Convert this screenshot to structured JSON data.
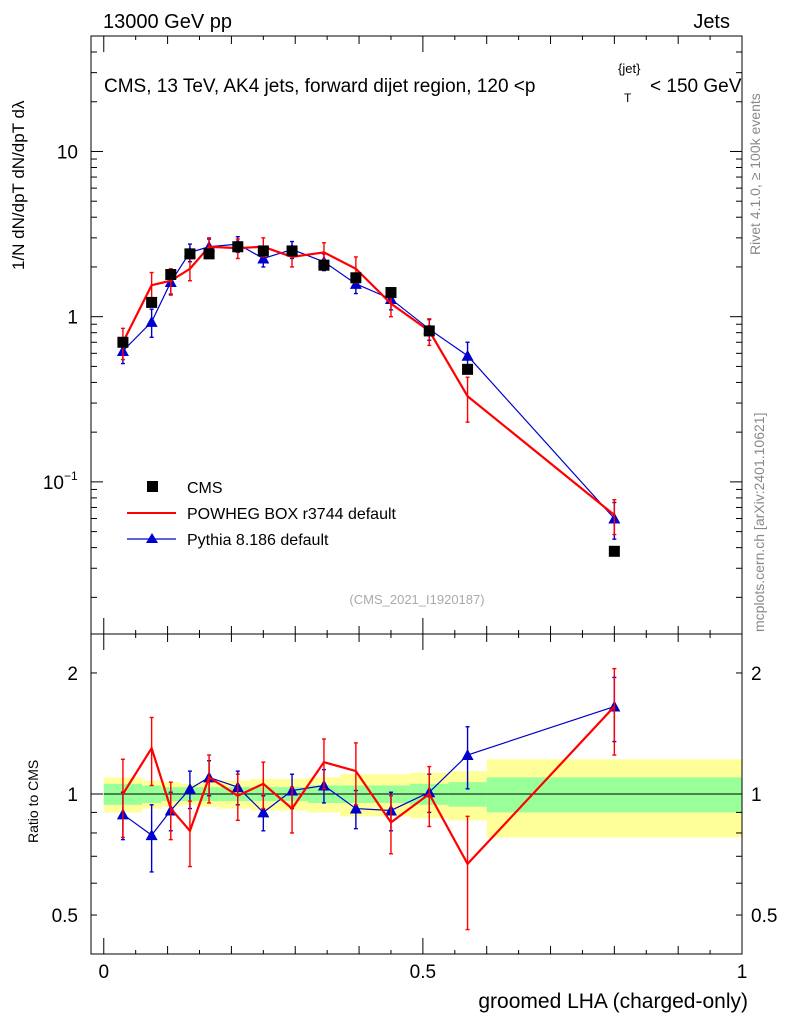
{
  "header": {
    "left": "13000 GeV pp",
    "right": "Jets",
    "title": "CMS, 13 TeV, AK4 jets, forward dijet region, 120 <p",
    "title_sup": "{jet}",
    "title_sub": "T",
    "title_tail": "< 150 GeV"
  },
  "side_labels": {
    "rivet": "Rivet 4.1.0, ≥ 100k events",
    "mcplots": "mcplots.cern.ch [arXiv:2401.10621]"
  },
  "watermark": "(CMS_2021_I1920187)",
  "ylabel_main": "1/N dN/dpT dN/dpT dλ",
  "ylabel_ratio": "Ratio to CMS",
  "xlabel": "groomed LHA (charged-only)",
  "colors": {
    "cms": "#000000",
    "powheg": "#ff0000",
    "pythia": "#0000cc",
    "band_inner": "#99ff99",
    "band_outer": "#ffff99"
  },
  "chart_data": [
    {
      "type": "line",
      "panel": "main",
      "yscale": "log",
      "xlim": [
        -0.02,
        1.0
      ],
      "ylim": [
        0.012,
        50
      ],
      "x_ticks": [],
      "y_ticks": [
        {
          "value": 0.1,
          "label": "10",
          "sup": "−1"
        },
        {
          "value": 1,
          "label": "1"
        },
        {
          "value": 10,
          "label": "10"
        }
      ],
      "legend": {
        "position": "lower-left",
        "entries": [
          {
            "key": "cms",
            "label": "CMS"
          },
          {
            "key": "powheg",
            "label": "POWHEG BOX r3744 default"
          },
          {
            "key": "pythia",
            "label": "Pythia 8.186 default"
          }
        ]
      },
      "series": [
        {
          "name": "CMS",
          "key": "cms",
          "x": [
            0.03,
            0.075,
            0.105,
            0.135,
            0.165,
            0.21,
            0.25,
            0.295,
            0.345,
            0.395,
            0.45,
            0.51,
            0.57,
            0.8
          ],
          "y": [
            0.7,
            1.22,
            1.8,
            2.4,
            2.4,
            2.65,
            2.5,
            2.5,
            2.05,
            1.72,
            1.4,
            0.82,
            0.48,
            0.038
          ]
        },
        {
          "name": "POWHEG BOX r3744 default",
          "key": "powheg",
          "x": [
            0.03,
            0.075,
            0.105,
            0.135,
            0.165,
            0.21,
            0.25,
            0.295,
            0.345,
            0.395,
            0.45,
            0.51,
            0.57,
            0.8
          ],
          "y": [
            0.7,
            1.55,
            1.65,
            1.95,
            2.65,
            2.6,
            2.65,
            2.3,
            2.45,
            1.95,
            1.2,
            0.82,
            0.33,
            0.063
          ],
          "err": [
            0.15,
            0.3,
            0.3,
            0.3,
            0.35,
            0.35,
            0.35,
            0.3,
            0.35,
            0.35,
            0.2,
            0.15,
            0.1,
            0.015
          ]
        },
        {
          "name": "Pythia 8.186 default",
          "key": "pythia",
          "x": [
            0.03,
            0.075,
            0.105,
            0.135,
            0.165,
            0.21,
            0.25,
            0.295,
            0.345,
            0.395,
            0.45,
            0.51,
            0.57,
            0.8
          ],
          "y": [
            0.62,
            0.93,
            1.62,
            2.45,
            2.65,
            2.75,
            2.25,
            2.55,
            2.15,
            1.58,
            1.28,
            0.84,
            0.58,
            0.06
          ],
          "err": [
            0.1,
            0.18,
            0.25,
            0.3,
            0.3,
            0.3,
            0.25,
            0.3,
            0.25,
            0.2,
            0.18,
            0.12,
            0.12,
            0.015
          ]
        }
      ]
    },
    {
      "type": "line",
      "panel": "ratio",
      "yscale": "log",
      "xlim": [
        -0.02,
        1.0
      ],
      "ylim": [
        0.4,
        2.5
      ],
      "x_ticks": [
        {
          "value": 0,
          "label": "0"
        },
        {
          "value": 0.5,
          "label": "0.5"
        },
        {
          "value": 1,
          "label": "1"
        }
      ],
      "y_ticks": [
        {
          "value": 0.5,
          "label": "0.5"
        },
        {
          "value": 1,
          "label": "1"
        },
        {
          "value": 2,
          "label": "2"
        }
      ],
      "band": {
        "edges": [
          0.0,
          0.06,
          0.09,
          0.12,
          0.15,
          0.18,
          0.23,
          0.27,
          0.32,
          0.37,
          0.42,
          0.48,
          0.54,
          0.6,
          1.0
        ],
        "inner": [
          0.06,
          0.05,
          0.04,
          0.04,
          0.04,
          0.04,
          0.04,
          0.04,
          0.05,
          0.05,
          0.05,
          0.06,
          0.07,
          0.1
        ],
        "outer": [
          0.1,
          0.08,
          0.07,
          0.06,
          0.07,
          0.08,
          0.09,
          0.09,
          0.1,
          0.12,
          0.12,
          0.13,
          0.14,
          0.22
        ]
      },
      "series": [
        {
          "name": "POWHEG BOX r3744 default",
          "key": "powheg",
          "x": [
            0.03,
            0.075,
            0.105,
            0.135,
            0.165,
            0.21,
            0.25,
            0.295,
            0.345,
            0.395,
            0.45,
            0.51,
            0.57,
            0.8
          ],
          "y": [
            1.0,
            1.3,
            0.92,
            0.81,
            1.1,
            0.99,
            1.06,
            0.92,
            1.2,
            1.14,
            0.85,
            1.0,
            0.67,
            1.65
          ],
          "err": [
            0.22,
            0.25,
            0.15,
            0.15,
            0.15,
            0.13,
            0.14,
            0.12,
            0.17,
            0.2,
            0.14,
            0.17,
            0.21,
            0.4
          ]
        },
        {
          "name": "Pythia 8.186 default",
          "key": "pythia",
          "x": [
            0.03,
            0.075,
            0.105,
            0.135,
            0.165,
            0.21,
            0.25,
            0.295,
            0.345,
            0.395,
            0.45,
            0.51,
            0.57,
            0.8
          ],
          "y": [
            0.89,
            0.79,
            0.91,
            1.03,
            1.1,
            1.04,
            0.9,
            1.02,
            1.05,
            0.92,
            0.91,
            1.01,
            1.25,
            1.65
          ],
          "err": [
            0.12,
            0.15,
            0.1,
            0.11,
            0.11,
            0.1,
            0.09,
            0.1,
            0.1,
            0.1,
            0.1,
            0.11,
            0.22,
            0.3
          ]
        }
      ]
    }
  ]
}
